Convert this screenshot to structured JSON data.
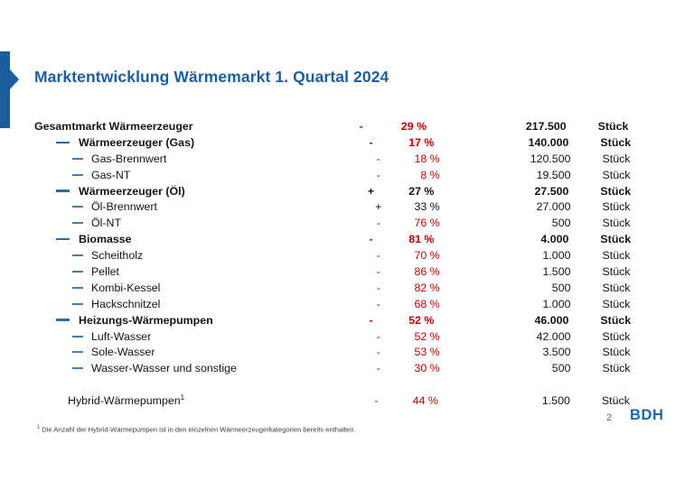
{
  "header": {
    "title": "Marktentwicklung Wärmemarkt 1. Quartal 2024"
  },
  "colors": {
    "accent_blue": "#1B5E9E",
    "negative_red": "#C00000",
    "tree_dash_blue": "#2F6B99",
    "logo_blue": "#1767A9"
  },
  "table": {
    "rows": [
      {
        "label": "Gesamtmarkt Wärmeerzeuger",
        "level": 0,
        "bold": true,
        "sign": "-",
        "pct": "29 %",
        "value": "217.500",
        "unit": "Stück",
        "trend": "negative"
      },
      {
        "label": "Wärmeerzeuger (Gas)",
        "level": 1,
        "bold": true,
        "sign": "-",
        "pct": "17 %",
        "value": "140.000",
        "unit": "Stück",
        "trend": "negative"
      },
      {
        "label": "Gas-Brennwert",
        "level": 2,
        "bold": false,
        "sign": "-",
        "pct": "18 %",
        "value": "120.500",
        "unit": "Stück",
        "trend": "negative"
      },
      {
        "label": "Gas-NT",
        "level": 2,
        "bold": false,
        "sign": "-",
        "pct": "8 %",
        "value": "19.500",
        "unit": "Stück",
        "trend": "negative"
      },
      {
        "label": "Wärmeerzeuger (Öl)",
        "level": 1,
        "bold": true,
        "sign": "+",
        "pct": "27 %",
        "value": "27.500",
        "unit": "Stück",
        "trend": "positive"
      },
      {
        "label": "Öl-Brennwert",
        "level": 2,
        "bold": false,
        "sign": "+",
        "pct": "33 %",
        "value": "27.000",
        "unit": "Stück",
        "trend": "positive"
      },
      {
        "label": "Öl-NT",
        "level": 2,
        "bold": false,
        "sign": "-",
        "pct": "76 %",
        "value": "500",
        "unit": "Stück",
        "trend": "negative"
      },
      {
        "label": "Biomasse",
        "level": 1,
        "bold": true,
        "sign": "-",
        "pct": "81 %",
        "value": "4.000",
        "unit": "Stück",
        "trend": "negative"
      },
      {
        "label": "Scheitholz",
        "level": 2,
        "bold": false,
        "sign": "-",
        "pct": "70 %",
        "value": "1.000",
        "unit": "Stück",
        "trend": "negative"
      },
      {
        "label": "Pellet",
        "level": 2,
        "bold": false,
        "sign": "-",
        "pct": "86 %",
        "value": "1.500",
        "unit": "Stück",
        "trend": "negative"
      },
      {
        "label": "Kombi-Kessel",
        "level": 2,
        "bold": false,
        "sign": "-",
        "pct": "82 %",
        "value": "500",
        "unit": "Stück",
        "trend": "negative"
      },
      {
        "label": "Hackschnitzel",
        "level": 2,
        "bold": false,
        "sign": "-",
        "pct": "68 %",
        "value": "1.000",
        "unit": "Stück",
        "trend": "negative"
      },
      {
        "label": "Heizungs-Wärmepumpen",
        "level": 1,
        "bold": true,
        "sign": "-",
        "pct": "52 %",
        "value": "46.000",
        "unit": "Stück",
        "trend": "negative"
      },
      {
        "label": "Luft-Wasser",
        "level": 2,
        "bold": false,
        "sign": "-",
        "pct": "52 %",
        "value": "42.000",
        "unit": "Stück",
        "trend": "negative"
      },
      {
        "label": "Sole-Wasser",
        "level": 2,
        "bold": false,
        "sign": "-",
        "pct": "53 %",
        "value": "3.500",
        "unit": "Stück",
        "trend": "negative"
      },
      {
        "label": "Wasser-Wasser und sonstige",
        "level": 2,
        "bold": false,
        "sign": "-",
        "pct": "30 %",
        "value": "500",
        "unit": "Stück",
        "trend": "negative"
      },
      {
        "label": "Hybrid-Wärmepumpen",
        "sup": "1",
        "level": "hybrid",
        "bold": false,
        "sign": "-",
        "pct": "44 %",
        "value": "1.500",
        "unit": "Stück",
        "trend": "negative",
        "gap_before": true
      }
    ]
  },
  "footnote": {
    "sup": "1",
    "text": "Die Anzahl der Hybrid-Wärmepumpen ist in den einzelnen Wärmeerzeugerkategorien bereits enthalten."
  },
  "footer": {
    "page_number": "2",
    "logo_text": "BDH"
  }
}
